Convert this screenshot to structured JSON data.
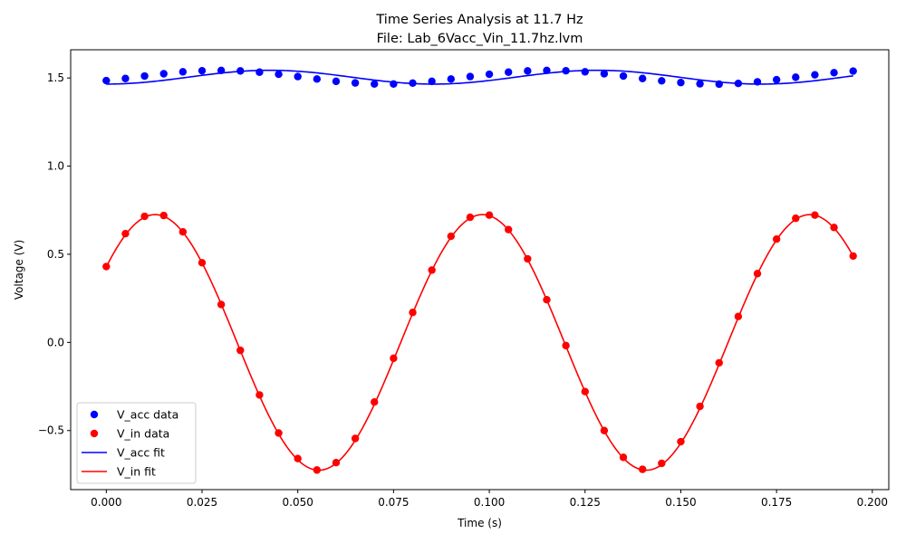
{
  "chart_data": {
    "type": "line",
    "title": "Time Series Analysis at 11.7 Hz",
    "subtitle": "File: Lab_6Vacc_Vin_11.7hz.lvm",
    "xlabel": "Time (s)",
    "ylabel": "Voltage (V)",
    "xlim": [
      -0.0093,
      0.2043
    ],
    "ylim": [
      -0.835,
      1.66
    ],
    "xticks": [
      0.0,
      0.025,
      0.05,
      0.075,
      0.1,
      0.125,
      0.15,
      0.175,
      0.2
    ],
    "xtick_labels": [
      "0.000",
      "0.025",
      "0.050",
      "0.075",
      "0.100",
      "0.125",
      "0.150",
      "0.175",
      "0.200"
    ],
    "yticks": [
      -0.5,
      0.0,
      0.5,
      1.0,
      1.5
    ],
    "ytick_labels": [
      "−0.5",
      "0.0",
      "0.5",
      "1.0",
      "1.5"
    ],
    "grid": false,
    "legend_position": "lower-left",
    "x": [
      0.0,
      0.005,
      0.01,
      0.015,
      0.02,
      0.025,
      0.03,
      0.035,
      0.04,
      0.045,
      0.05,
      0.055,
      0.06,
      0.065,
      0.07,
      0.075,
      0.08,
      0.085,
      0.09,
      0.095,
      0.1,
      0.105,
      0.11,
      0.115,
      0.12,
      0.125,
      0.13,
      0.135,
      0.14,
      0.145,
      0.15,
      0.155,
      0.16,
      0.165,
      0.17,
      0.175,
      0.18,
      0.185,
      0.19,
      0.195
    ],
    "series": [
      {
        "name": "V_acc data",
        "kind": "points",
        "color": "#0000ff",
        "values": [
          1.485,
          1.497,
          1.511,
          1.524,
          1.535,
          1.541,
          1.543,
          1.54,
          1.533,
          1.521,
          1.508,
          1.494,
          1.481,
          1.472,
          1.466,
          1.466,
          1.471,
          1.481,
          1.494,
          1.508,
          1.521,
          1.533,
          1.54,
          1.543,
          1.541,
          1.535,
          1.524,
          1.511,
          1.497,
          1.484,
          1.474,
          1.467,
          1.465,
          1.469,
          1.478,
          1.49,
          1.504,
          1.518,
          1.53,
          1.539
        ]
      },
      {
        "name": "V_in data",
        "kind": "points",
        "color": "#ff0000",
        "values": [
          0.43,
          0.617,
          0.715,
          0.72,
          0.627,
          0.452,
          0.215,
          -0.045,
          -0.298,
          -0.514,
          -0.659,
          -0.724,
          -0.682,
          -0.545,
          -0.338,
          -0.09,
          0.17,
          0.41,
          0.602,
          0.71,
          0.722,
          0.64,
          0.474,
          0.242,
          -0.018,
          -0.279,
          -0.5,
          -0.652,
          -0.72,
          -0.686,
          -0.563,
          -0.363,
          -0.116,
          0.147,
          0.39,
          0.586,
          0.704,
          0.722,
          0.652,
          0.49
        ]
      },
      {
        "name": "V_acc fit",
        "kind": "fit",
        "color": "#0000ff",
        "model": {
          "offset": 1.5045,
          "amplitude": 0.0392,
          "frequency_hz": 11.7,
          "phase_rad": -1.57
        }
      },
      {
        "name": "V_in fit",
        "kind": "fit",
        "color": "#ff0000",
        "model": {
          "offset": 0.0,
          "amplitude": 0.725,
          "frequency_hz": 11.7,
          "phase_rad": 0.632
        }
      }
    ],
    "legend": [
      {
        "label": "V_acc data",
        "marker": "point",
        "color": "#0000ff"
      },
      {
        "label": "V_in data",
        "marker": "point",
        "color": "#ff0000"
      },
      {
        "label": "V_acc fit",
        "marker": "line",
        "color": "#0000ff"
      },
      {
        "label": "V_in fit",
        "marker": "line",
        "color": "#ff0000"
      }
    ]
  }
}
